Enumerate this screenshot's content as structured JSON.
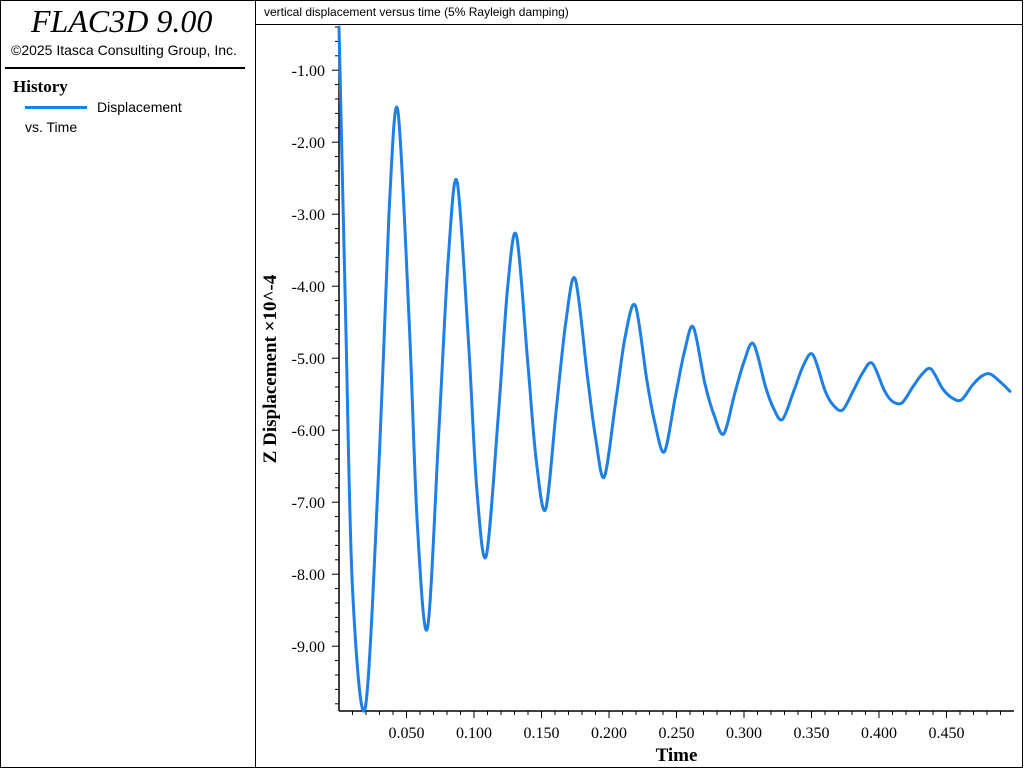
{
  "app": {
    "title": "FLAC3D 9.00",
    "copyright": "©2025 Itasca Consulting Group, Inc."
  },
  "legend": {
    "heading": "History",
    "series_label_line1": "Displacement",
    "series_label_line2": "vs. Time"
  },
  "plot": {
    "title": "vertical displacement versus time (5% Rayleigh damping)"
  },
  "colors": {
    "series": "#1e7fe6",
    "axis": "#000000"
  },
  "chart_data": {
    "type": "line",
    "title": "vertical displacement versus time (5% Rayleigh damping)",
    "xlabel": "Time",
    "ylabel": "Z Displacement ×10^-4",
    "xlim": [
      0.0,
      0.5
    ],
    "ylim": [
      -9.9,
      -0.4
    ],
    "x_ticks": [
      0.05,
      0.1,
      0.15,
      0.2,
      0.25,
      0.3,
      0.35,
      0.4,
      0.45
    ],
    "x_tick_labels": [
      "0.050",
      "0.100",
      "0.150",
      "0.200",
      "0.250",
      "0.300",
      "0.350",
      "0.400",
      "0.450"
    ],
    "y_ticks": [
      -1,
      -2,
      -3,
      -4,
      -5,
      -6,
      -7,
      -8,
      -9
    ],
    "y_tick_labels": [
      "-1.00",
      "-2.00",
      "-3.00",
      "-4.00",
      "-5.00",
      "-6.00",
      "-7.00",
      "-8.00",
      "-9.00"
    ],
    "grid": false,
    "series": [
      {
        "name": "Displacement vs. Time",
        "x": [
          0.0,
          0.005,
          0.01,
          0.0195,
          0.03,
          0.037,
          0.0435,
          0.052,
          0.058,
          0.0655,
          0.074,
          0.081,
          0.0875,
          0.096,
          0.102,
          0.109,
          0.118,
          0.125,
          0.1315,
          0.14,
          0.146,
          0.153,
          0.161,
          0.168,
          0.175,
          0.184,
          0.19,
          0.1965,
          0.205,
          0.212,
          0.2195,
          0.228,
          0.234,
          0.241,
          0.249,
          0.256,
          0.2625,
          0.271,
          0.278,
          0.285,
          0.293,
          0.3,
          0.307,
          0.316,
          0.322,
          0.3285,
          0.337,
          0.344,
          0.351,
          0.36,
          0.366,
          0.373,
          0.381,
          0.388,
          0.395,
          0.404,
          0.41,
          0.417,
          0.425,
          0.432,
          0.4385,
          0.447,
          0.454,
          0.461,
          0.469,
          0.476,
          0.4825,
          0.491,
          0.497
        ],
        "values": [
          -0.4,
          -4.5,
          -8.2,
          -9.85,
          -6.3,
          -3.0,
          -1.55,
          -4.5,
          -7.3,
          -8.75,
          -6.0,
          -3.6,
          -2.55,
          -4.8,
          -6.8,
          -7.75,
          -5.8,
          -4.0,
          -3.3,
          -5.1,
          -6.4,
          -7.1,
          -5.7,
          -4.5,
          -3.9,
          -5.25,
          -6.1,
          -6.65,
          -5.6,
          -4.7,
          -4.27,
          -5.3,
          -5.9,
          -6.3,
          -5.55,
          -4.9,
          -4.57,
          -5.35,
          -5.8,
          -6.05,
          -5.5,
          -5.05,
          -4.8,
          -5.4,
          -5.7,
          -5.85,
          -5.45,
          -5.1,
          -4.95,
          -5.45,
          -5.65,
          -5.72,
          -5.45,
          -5.2,
          -5.07,
          -5.45,
          -5.6,
          -5.62,
          -5.4,
          -5.22,
          -5.15,
          -5.42,
          -5.55,
          -5.58,
          -5.38,
          -5.25,
          -5.22,
          -5.35,
          -5.46
        ]
      }
    ]
  }
}
